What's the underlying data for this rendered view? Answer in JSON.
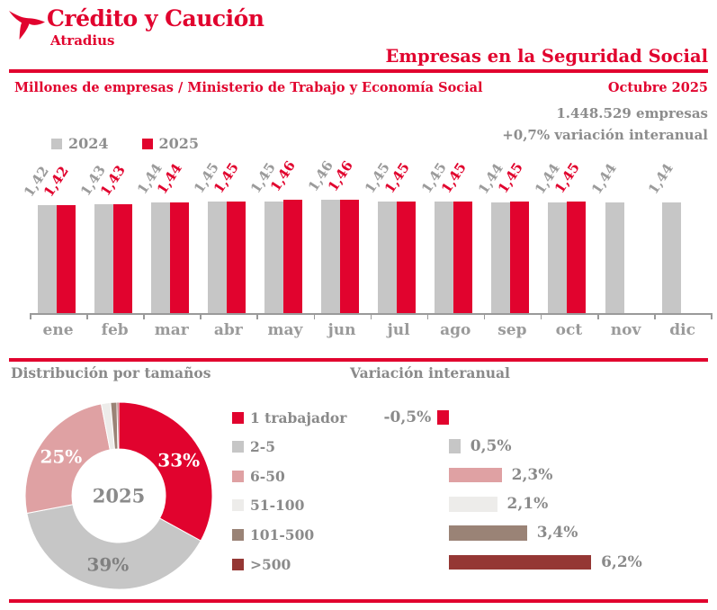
{
  "colors": {
    "brand_red": "#e1032e",
    "bar_gray": "#c6c6c6",
    "pink": "#dfa1a3",
    "light_gray": "#edecea",
    "brown_gray": "#9a8376",
    "dark_red": "#953734",
    "text_gray": "#8a8a8a",
    "value_gray": "#9b9b9b"
  },
  "header": {
    "logo_title": "Crédito y Caución",
    "logo_subtitle": "Atradius",
    "title": "Empresas en la Seguridad Social",
    "subtitle_left": "Millones de empresas / Ministerio de Trabajo y Economía Social",
    "period_label": "Octubre 2025",
    "total_companies": "1.448.529 empresas",
    "yoy_variation": "+0,7% variación interanual"
  },
  "chart_data": [
    {
      "type": "bar",
      "title": "Millones de empresas / Ministerio de Trabajo y Economía Social",
      "ylabel": "Millones de empresas",
      "y_axis_hidden": true,
      "value_labels_rotated": true,
      "legend_position": "top-left",
      "categories": [
        "ene",
        "feb",
        "mar",
        "abr",
        "may",
        "jun",
        "jul",
        "ago",
        "sep",
        "oct",
        "nov",
        "dic"
      ],
      "series": [
        {
          "name": "2024",
          "color": "#c6c6c6",
          "values": [
            1.42,
            1.43,
            1.44,
            1.45,
            1.45,
            1.46,
            1.45,
            1.45,
            1.44,
            1.44,
            1.44,
            1.44
          ],
          "display": [
            "1,42",
            "1,43",
            "1,44",
            "1,45",
            "1,45",
            "1,46",
            "1,45",
            "1,45",
            "1,44",
            "1,44",
            "1,44",
            "1,44"
          ]
        },
        {
          "name": "2025",
          "color": "#e1032e",
          "values": [
            1.42,
            1.43,
            1.44,
            1.45,
            1.46,
            1.46,
            1.45,
            1.45,
            1.45,
            1.45,
            null,
            null
          ],
          "display": [
            "1,42",
            "1,43",
            "1,44",
            "1,45",
            "1,46",
            "1,46",
            "1,45",
            "1,45",
            "1,45",
            "1,45",
            "",
            ""
          ]
        }
      ]
    },
    {
      "type": "pie",
      "title": "Distribución por tamaños",
      "center_label": "2025",
      "slices": [
        {
          "label": "1 trabajador",
          "value": 33,
          "display": "33%",
          "color": "#e1032e",
          "label_color": "#ffffff"
        },
        {
          "label": "2-5",
          "value": 39,
          "display": "39%",
          "color": "#c6c6c6",
          "label_color": "#808080"
        },
        {
          "label": "6-50",
          "value": 25,
          "display": "25%",
          "color": "#dfa1a3",
          "label_color": "#ffffff"
        },
        {
          "label": "51-100",
          "value": 1.6,
          "display": "",
          "color": "#edecea",
          "label_color": "#8a8a8a"
        },
        {
          "label": "101-500",
          "value": 1.1,
          "display": "",
          "color": "#9a8376",
          "label_color": "#ffffff"
        },
        {
          "label": ">500",
          "value": 0.3,
          "display": "",
          "color": "#953734",
          "label_color": "#ffffff"
        }
      ]
    },
    {
      "type": "bar",
      "orientation": "horizontal",
      "title": "Variación interanual",
      "categories": [
        "1 trabajador",
        "2-5",
        "6-50",
        "51-100",
        "101-500",
        ">500"
      ],
      "values": [
        -0.5,
        0.5,
        2.3,
        2.1,
        3.4,
        6.2
      ],
      "labels": [
        "-0,5%",
        "0,5%",
        "2,3%",
        "2,1%",
        "3,4%",
        "6,2%"
      ],
      "colors": [
        "#e1032e",
        "#c6c6c6",
        "#dfa1a3",
        "#edecea",
        "#9a8376",
        "#953734"
      ],
      "xlim": [
        -1,
        7
      ]
    }
  ]
}
